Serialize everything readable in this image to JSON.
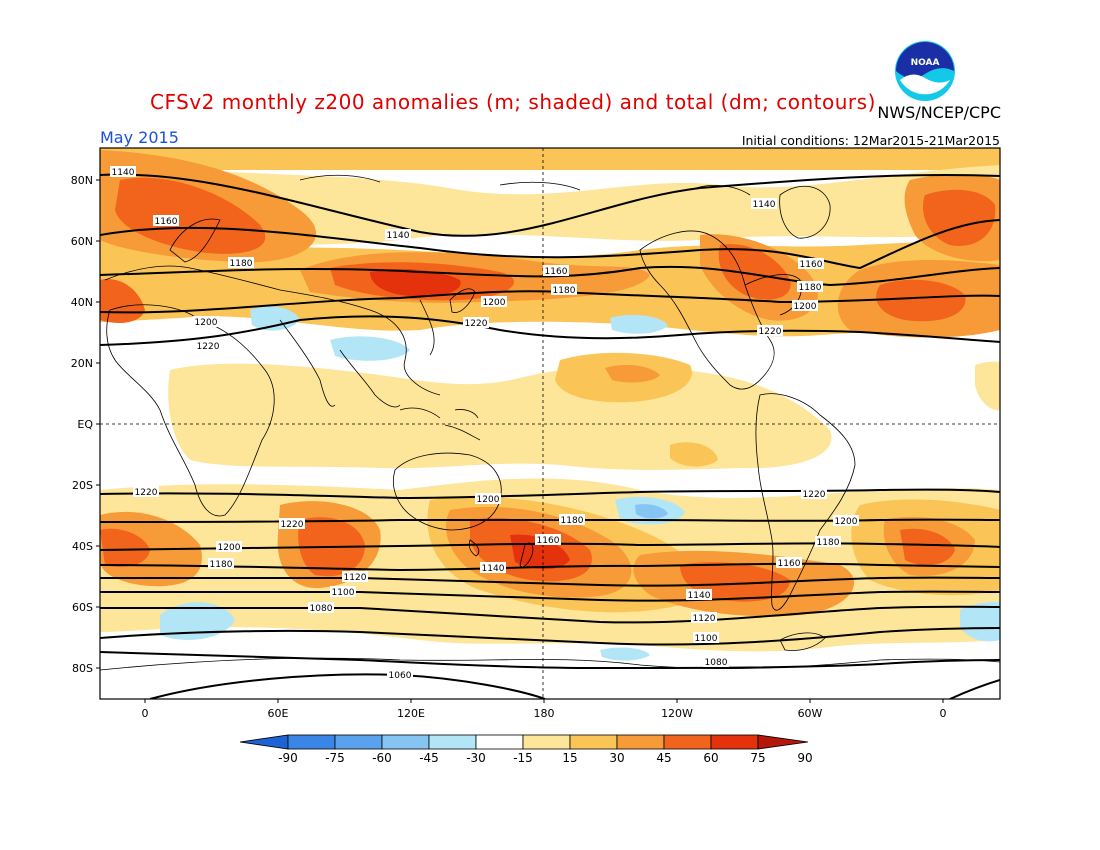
{
  "header": {
    "title": "CFSv2 monthly z200 anomalies (m; shaded) and total (dm; contours)",
    "agency": "NWS/NCEP/CPC",
    "period": "May 2015",
    "initial_conditions": "Initial conditions: 12Mar2015-21Mar2015"
  },
  "logo": {
    "text": "NOAA",
    "icon": "noaa-logo"
  },
  "axes": {
    "lat_labels": [
      "80N",
      "60N",
      "40N",
      "20N",
      "EQ",
      "20S",
      "40S",
      "60S",
      "80S"
    ],
    "lon_labels": [
      "0",
      "60E",
      "120E",
      "180",
      "120W",
      "60W",
      "0"
    ]
  },
  "colorbar": {
    "labels": [
      "-90",
      "-75",
      "-60",
      "-45",
      "-30",
      "-15",
      "15",
      "30",
      "45",
      "60",
      "75",
      "90"
    ],
    "colors": [
      "#1e63d6",
      "#3a86e6",
      "#5aa2ee",
      "#86c4f4",
      "#b2e6f6",
      "#ffffff",
      "#fde59a",
      "#fbc456",
      "#f79a38",
      "#f2641c",
      "#e3320c",
      "#b5170a"
    ]
  },
  "contour_labels": [
    "1140",
    "1160",
    "1180",
    "1200",
    "1220",
    "1140",
    "1160",
    "1180",
    "1200",
    "1220",
    "1140",
    "1160",
    "1180",
    "1200",
    "1220",
    "1220",
    "1200",
    "1180",
    "1160",
    "1140",
    "1120",
    "1100",
    "1080",
    "1060",
    "1220",
    "1200",
    "1180",
    "1160",
    "1140",
    "1120",
    "1100",
    "1080",
    "1220",
    "1200",
    "1180"
  ]
}
